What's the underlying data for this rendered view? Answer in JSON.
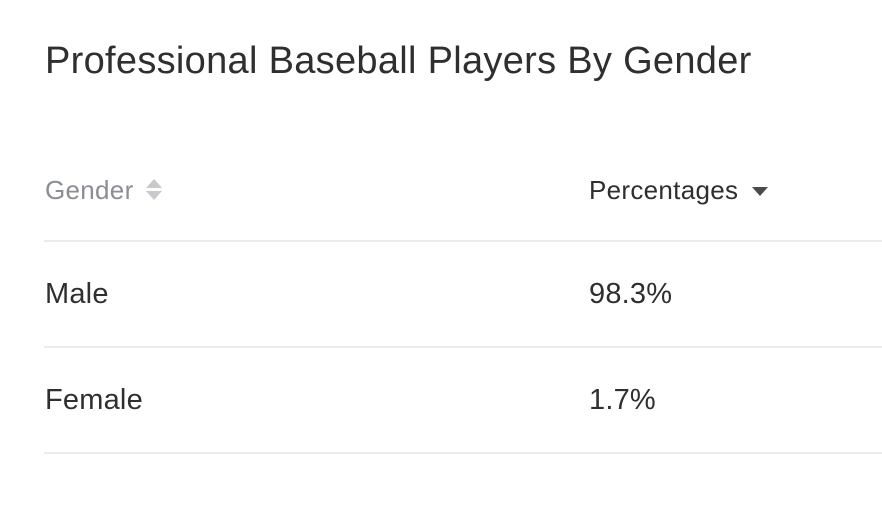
{
  "title": "Professional Baseball Players By Gender",
  "table": {
    "columns": [
      {
        "label": "Gender",
        "sort": "none"
      },
      {
        "label": "Percentages",
        "sort": "descending"
      }
    ],
    "rows": [
      {
        "gender": "Male",
        "percentage": "98.3%"
      },
      {
        "gender": "Female",
        "percentage": "1.7%"
      }
    ]
  },
  "icons": {
    "gender_sort": "sort-both-icon",
    "percentages_sort": "sort-descending-icon"
  },
  "colors": {
    "inactive_header": "#8a8d92",
    "text": "#2f2f2f",
    "divider": "#ececec"
  }
}
